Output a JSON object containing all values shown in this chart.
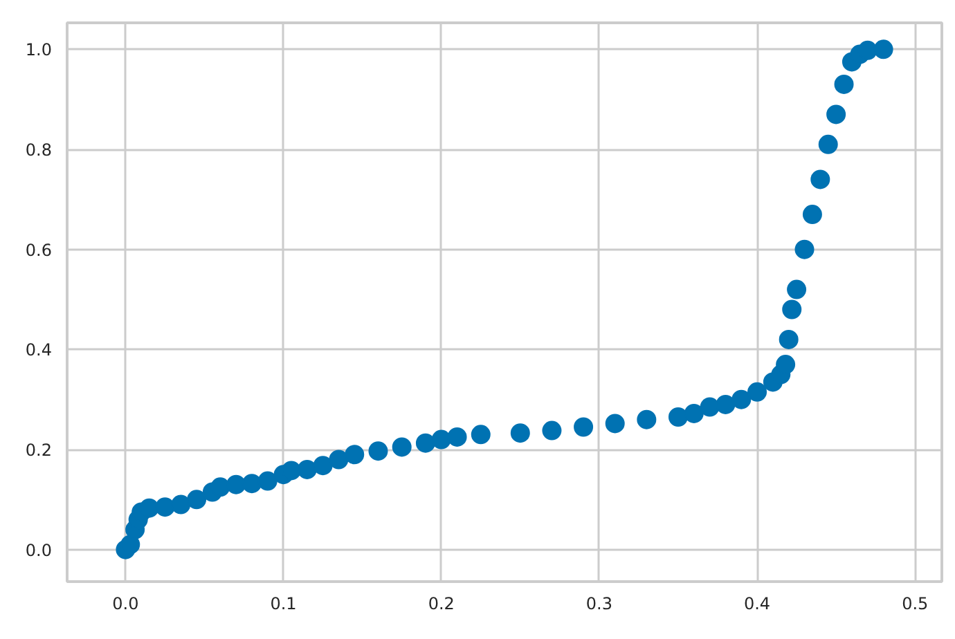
{
  "chart_data": {
    "type": "scatter",
    "marker": "circle",
    "grid": true,
    "x": [
      0,
      0.003,
      0.006,
      0.008,
      0.01,
      0.015,
      0.025,
      0.035,
      0.045,
      0.055,
      0.06,
      0.07,
      0.08,
      0.09,
      0.1,
      0.105,
      0.115,
      0.125,
      0.135,
      0.145,
      0.16,
      0.175,
      0.19,
      0.2,
      0.21,
      0.225,
      0.25,
      0.27,
      0.29,
      0.31,
      0.33,
      0.35,
      0.36,
      0.37,
      0.38,
      0.39,
      0.4,
      0.41,
      0.415,
      0.418,
      0.42,
      0.422,
      0.425,
      0.43,
      0.435,
      0.44,
      0.445,
      0.45,
      0.455,
      0.46,
      0.465,
      0.47,
      0.48
    ],
    "series": [
      {
        "color": "#0072b2",
        "values": [
          0,
          0.01,
          0.04,
          0.06,
          0.075,
          0.083,
          0.085,
          0.09,
          0.1,
          0.115,
          0.125,
          0.13,
          0.132,
          0.137,
          0.15,
          0.158,
          0.16,
          0.168,
          0.18,
          0.19,
          0.197,
          0.205,
          0.213,
          0.22,
          0.225,
          0.23,
          0.233,
          0.238,
          0.245,
          0.252,
          0.26,
          0.265,
          0.272,
          0.285,
          0.29,
          0.3,
          0.315,
          0.335,
          0.35,
          0.37,
          0.42,
          0.48,
          0.52,
          0.6,
          0.67,
          0.74,
          0.81,
          0.87,
          0.93,
          0.975,
          0.99,
          0.998,
          1.0
        ]
      }
    ],
    "xlim": [
      -0.037,
      0.517
    ],
    "ylim": [
      -0.064,
      1.053
    ],
    "xticks": [
      {
        "value": 0,
        "label": "0.0"
      },
      0.1,
      0.2,
      0.3,
      0.4,
      0.5
    ],
    "yticks": [
      {
        "value": 0,
        "label": "0.0"
      },
      0.2,
      0.4,
      0.6,
      0.8,
      {
        "value": 1,
        "label": "1.0"
      }
    ]
  }
}
